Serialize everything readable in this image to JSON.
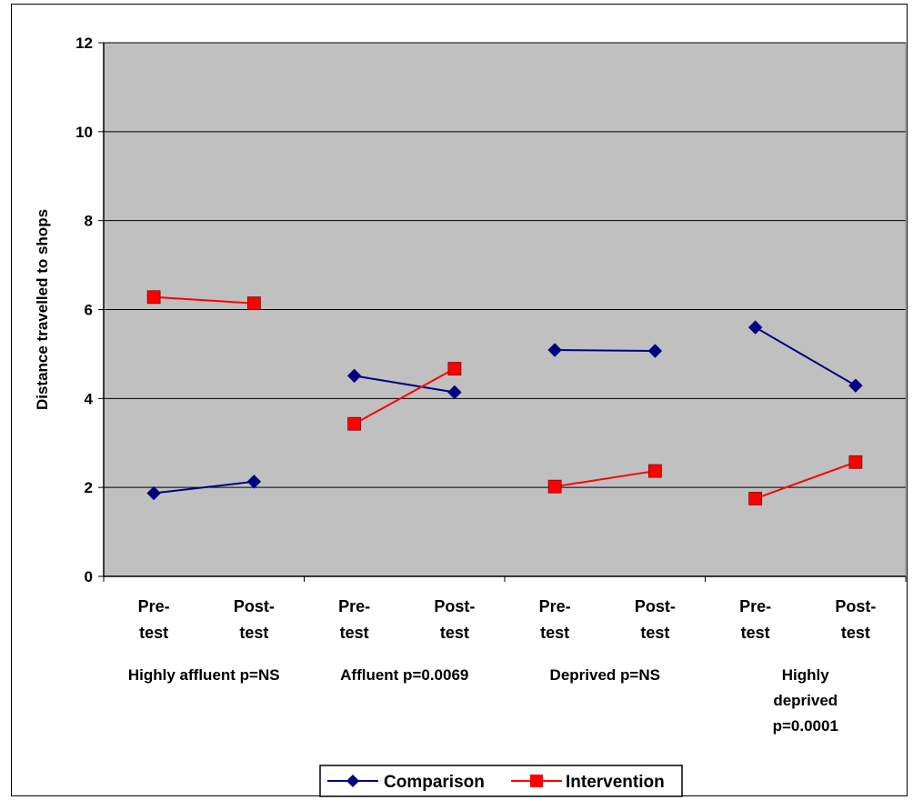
{
  "chart_data": {
    "type": "line",
    "title": "",
    "ylabel": "Distance travelled to shops",
    "ylim": [
      0,
      12
    ],
    "yticks": [
      0,
      2,
      4,
      6,
      8,
      10,
      12
    ],
    "grid": true,
    "legend": "bottom-center",
    "colors": {
      "plot_background": "#C0C0C0",
      "comparison": "#000080",
      "intervention": "#FF0000"
    },
    "groups": [
      {
        "label": "Highly affluent p=NS",
        "label_lines": [
          "Highly affluent p=NS"
        ],
        "x": [
          "Pre-test",
          "Post-test"
        ],
        "comparison": [
          1.87,
          2.13
        ],
        "intervention": [
          6.28,
          6.14
        ]
      },
      {
        "label": "Affluent p=0.0069",
        "label_lines": [
          "Affluent p=0.0069"
        ],
        "x": [
          "Pre-test",
          "Post-test"
        ],
        "comparison": [
          4.51,
          4.14
        ],
        "intervention": [
          3.43,
          4.67
        ]
      },
      {
        "label": "Deprived p=NS",
        "label_lines": [
          "Deprived p=NS"
        ],
        "x": [
          "Pre-test",
          "Post-test"
        ],
        "comparison": [
          5.09,
          5.07
        ],
        "intervention": [
          2.02,
          2.37
        ]
      },
      {
        "label": "Highly deprived p=0.0001",
        "label_lines": [
          "Highly",
          "deprived",
          "p=0.0001"
        ],
        "x": [
          "Pre-test",
          "Post-test"
        ],
        "comparison": [
          5.6,
          4.29
        ],
        "intervention": [
          1.75,
          2.57
        ]
      }
    ],
    "tick_label_lines": [
      "Pre-",
      "test",
      "Post-",
      "test"
    ],
    "series": [
      {
        "name": "Comparison",
        "marker": "diamond-icon"
      },
      {
        "name": "Intervention",
        "marker": "square-icon"
      }
    ]
  }
}
